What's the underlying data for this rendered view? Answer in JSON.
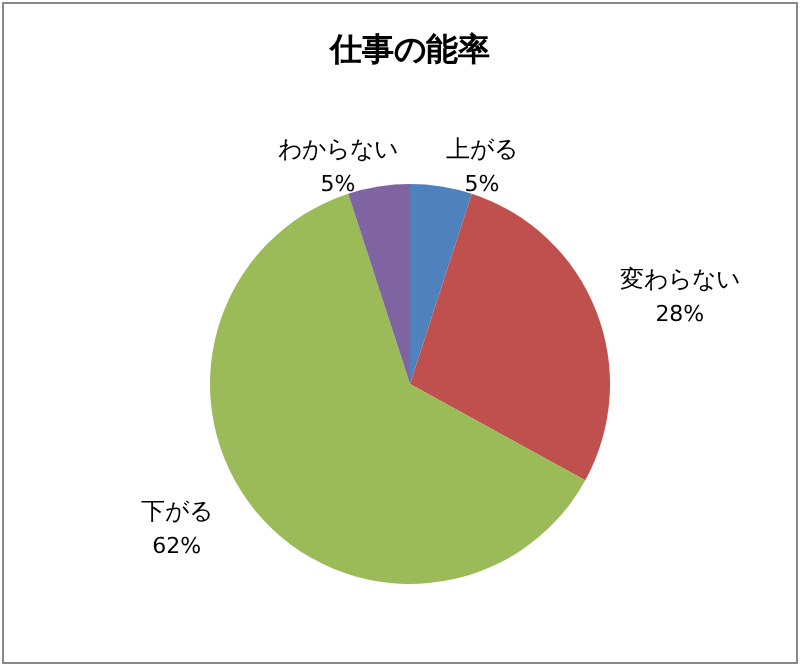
{
  "chart_data": {
    "type": "pie",
    "title": "仕事の能率",
    "categories": [
      "上がる",
      "変わらない",
      "下がる",
      "わからない"
    ],
    "values": [
      5,
      28,
      62,
      5
    ],
    "value_labels": [
      "5%",
      "28%",
      "62%",
      "5%"
    ],
    "colors": [
      "#4f81bd",
      "#c0504d",
      "#9bbb59",
      "#8064a2"
    ]
  }
}
